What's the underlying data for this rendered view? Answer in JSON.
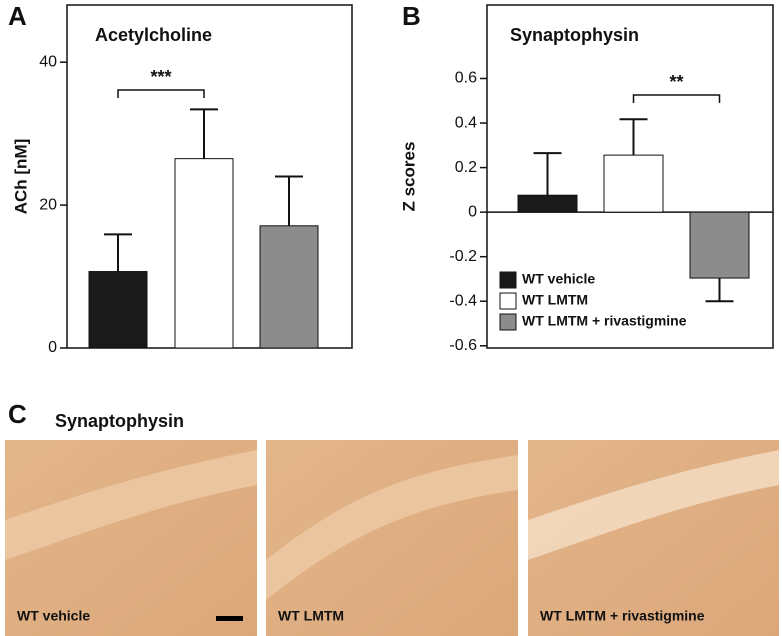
{
  "chart_data": [
    {
      "type": "bar",
      "panel": "A",
      "title": "Acetylcholine",
      "ylabel": "ACh [nM]",
      "categories": [
        null,
        null,
        null
      ],
      "values": [
        10.7,
        26.5,
        17.1
      ],
      "errors": [
        5.2,
        6.9,
        6.9
      ],
      "colors": [
        "#1a1a1a",
        "#ffffff",
        "#8c8c8c"
      ],
      "ylim": [
        0,
        48
      ],
      "yticks": [
        0,
        20,
        40
      ],
      "annotation": "***"
    },
    {
      "type": "bar",
      "panel": "B",
      "title": "Synaptophysin",
      "ylabel": "Z scores",
      "categories": [
        "WT vehicle",
        "WT LMTM",
        "WT LMTM + rivastigmine"
      ],
      "values": [
        0.076,
        0.256,
        -0.296
      ],
      "errors": [
        0.189,
        0.161,
        0.104
      ],
      "colors": [
        "#1a1a1a",
        "#ffffff",
        "#8c8c8c"
      ],
      "ylim": [
        -0.61,
        0.93
      ],
      "yticks": [
        -0.6,
        -0.4,
        -0.2,
        0,
        0.2,
        0.4,
        0.6
      ],
      "annotation": "**",
      "legend": true
    }
  ],
  "panel_c": {
    "label": "C",
    "title": "Synaptophysin",
    "images": [
      "WT vehicle",
      "WT LMTM",
      "WT LMTM + rivastigmine"
    ]
  }
}
